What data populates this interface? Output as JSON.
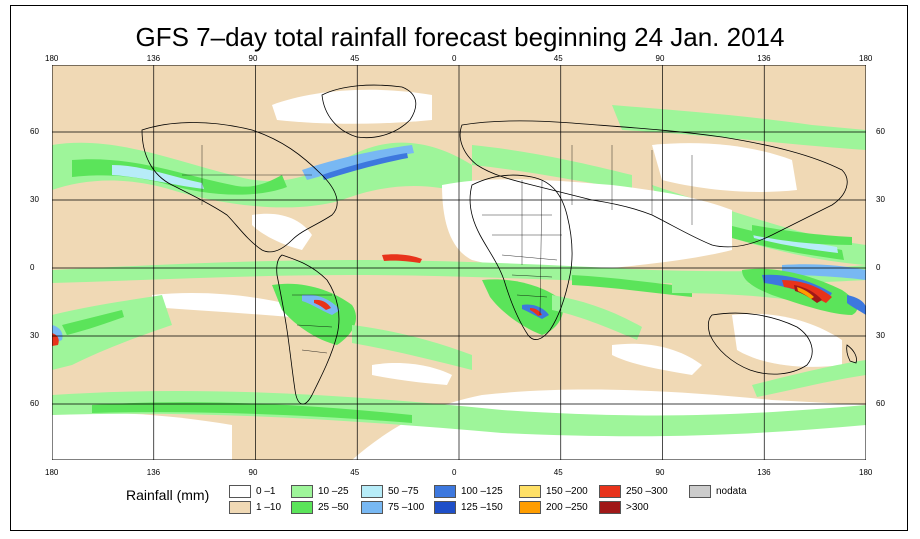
{
  "title": "GFS 7–day total rainfall forecast beginning 24 Jan. 2014",
  "lon_ticks": [
    "180",
    "136",
    "90",
    "45",
    "0",
    "45",
    "90",
    "136",
    "180"
  ],
  "lat_ticks": [
    "60",
    "30",
    "0",
    "30",
    "60"
  ],
  "legend": {
    "title": "Rainfall (mm)",
    "items": [
      {
        "label": "0 –1",
        "color": "#ffffff"
      },
      {
        "label": "1 –10",
        "color": "#f0d9b5"
      },
      {
        "label": "10 –25",
        "color": "#9ef59a"
      },
      {
        "label": "25 –50",
        "color": "#5be45a"
      },
      {
        "label": "50 –75",
        "color": "#b7ecf8"
      },
      {
        "label": "75 –100",
        "color": "#78b8f3"
      },
      {
        "label": "100 –125",
        "color": "#3d78de"
      },
      {
        "label": "125 –150",
        "color": "#1e4fc8"
      },
      {
        "label": "150 –200",
        "color": "#ffe066"
      },
      {
        "label": "200 –250",
        "color": "#ff9d00"
      },
      {
        "label": "250 –300",
        "color": "#e8331b"
      },
      {
        "label": ">300",
        "color": "#a01818"
      },
      {
        "label": "nodata",
        "color": "#cccccc"
      }
    ]
  }
}
